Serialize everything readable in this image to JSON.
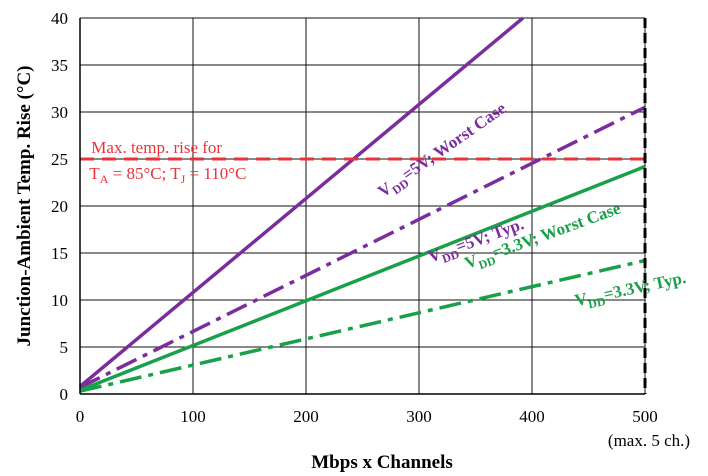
{
  "chart_data": {
    "type": "line",
    "xlabel": "Mbps x Channels",
    "ylabel": "Junction-Ambient Temp. Rise (°C)",
    "xlim": [
      0,
      500
    ],
    "ylim": [
      0,
      40
    ],
    "x_ticks": [
      {
        "value": 0,
        "label": "0"
      },
      {
        "value": 100,
        "label": "100"
      },
      {
        "value": 200,
        "label": "200"
      },
      {
        "value": 300,
        "label": "300"
      },
      {
        "value": 400,
        "label": "400"
      },
      {
        "value": 500,
        "label": "500"
      }
    ],
    "x_tick_note": "(max. 5 ch.)",
    "y_ticks": [
      {
        "value": 0,
        "label": "0"
      },
      {
        "value": 5,
        "label": "5"
      },
      {
        "value": 10,
        "label": "10"
      },
      {
        "value": 15,
        "label": "15"
      },
      {
        "value": 20,
        "label": "20"
      },
      {
        "value": 25,
        "label": "25"
      },
      {
        "value": 30,
        "label": "30"
      },
      {
        "value": 35,
        "label": "35"
      },
      {
        "value": 40,
        "label": "40"
      }
    ],
    "grid": true,
    "series": [
      {
        "label_main": "V",
        "label_sub": "DD",
        "label_rest": "=5V; Worst Case",
        "color": "#7b2d9e",
        "style": "solid",
        "x": [
          0,
          392
        ],
        "y": [
          0.8,
          40
        ],
        "label_at": [
          323,
          25.5
        ],
        "label_angle": -35
      },
      {
        "label_main": "V",
        "label_sub": "DD",
        "label_rest": "=5V; Typ.",
        "color": "#7b2d9e",
        "style": "dashdot",
        "x": [
          0,
          500
        ],
        "y": [
          0.7,
          30.5
        ],
        "label_at": [
          352,
          15.8
        ],
        "label_angle": -20
      },
      {
        "label_main": "V",
        "label_sub": "DD",
        "label_rest": "=3.3V; Worst Case",
        "color": "#1aa04a",
        "style": "solid",
        "x": [
          0,
          500
        ],
        "y": [
          0.4,
          24.2
        ],
        "label_at": [
          411,
          16.3
        ],
        "label_angle": -20
      },
      {
        "label_main": "V",
        "label_sub": "DD",
        "label_rest": "=3.3V; Typ.",
        "color": "#1aa04a",
        "style": "dashdot",
        "x": [
          0,
          500
        ],
        "y": [
          0.3,
          14.2
        ],
        "label_at": [
          488,
          10.6
        ],
        "label_angle": -12
      }
    ],
    "reference_lines": [
      {
        "orientation": "horizontal",
        "value": 25,
        "color": "#e8333a",
        "style": "dashed",
        "label_line1": "Max. temp. rise for",
        "label_line2": {
          "t1": "T",
          "s1": "A",
          "m": " = 85°C; T",
          "s2": "J",
          "e": " = 110°C"
        },
        "label_at": [
          10,
          25
        ]
      },
      {
        "orientation": "vertical",
        "value": 500,
        "color": "#000000",
        "style": "dashed"
      }
    ]
  }
}
